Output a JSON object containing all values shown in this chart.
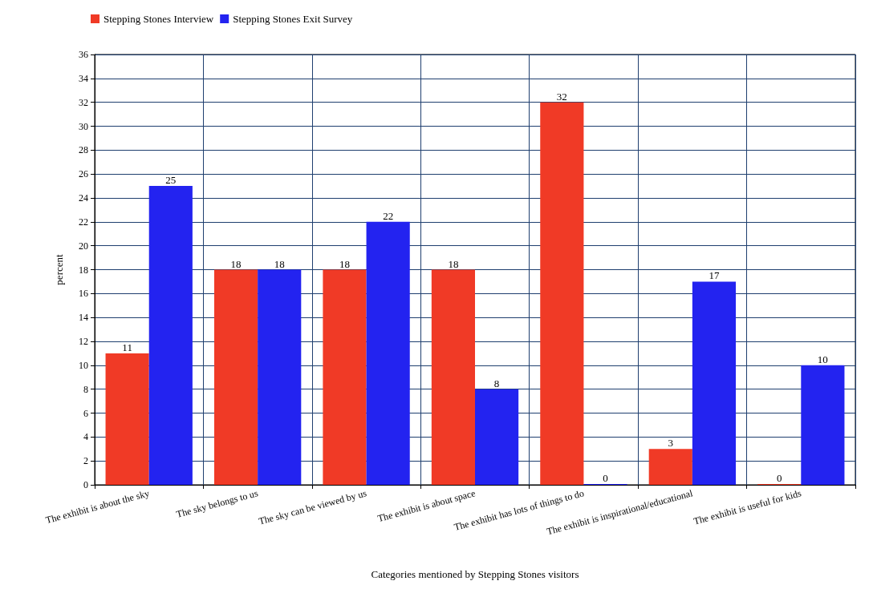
{
  "chart_data": {
    "type": "bar",
    "categories": [
      "The exhibit is about the sky",
      "The sky belongs to us",
      "The sky can be viewed by us",
      "The exhibit is about space",
      "The exhibit has lots of things to do",
      "The exhibit is inspirational/educational",
      "The exhibit is useful for kids"
    ],
    "series": [
      {
        "name": "Stepping Stones Interview",
        "color": "#f03a26",
        "values": [
          11,
          18,
          18,
          18,
          32,
          3,
          0
        ]
      },
      {
        "name": "Stepping Stones Exit Survey",
        "color": "#2323f0",
        "values": [
          25,
          18,
          22,
          8,
          0,
          17,
          10
        ]
      }
    ],
    "xlabel": "Categories mentioned by Stepping Stones visitors",
    "ylabel": "percent",
    "ylim": [
      0,
      36
    ],
    "yticks": [
      0,
      2,
      4,
      6,
      8,
      10,
      12,
      14,
      16,
      18,
      20,
      22,
      24,
      26,
      28,
      30,
      32,
      34,
      36
    ],
    "grid": true,
    "legend": "top left",
    "data_labels": true
  }
}
